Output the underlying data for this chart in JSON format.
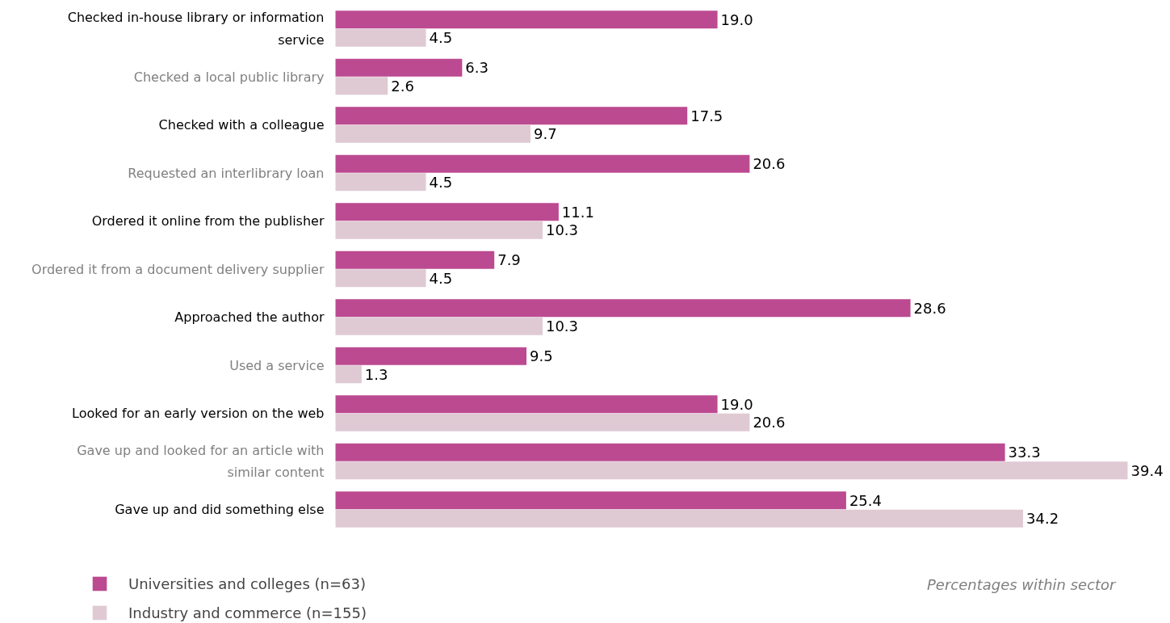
{
  "chart_data": {
    "type": "bar",
    "orientation": "horizontal",
    "grid": false,
    "legend": "bottom left",
    "categories": [
      "Checked in-house library or information service",
      "Checked a local public library",
      "Checked with a colleague",
      "Requested an interlibrary loan",
      "Ordered it online from the publisher",
      "Ordered it from a document delivery supplier",
      "Approached the author",
      "Used a service",
      "Looked for an early version on the web",
      "Gave up and looked for an article with similar content",
      "Gave up and did something else"
    ],
    "series": [
      {
        "name": "Universities and colleges (n=63)",
        "color": "#bc4a91",
        "values": [
          19.0,
          6.3,
          17.5,
          20.6,
          11.1,
          7.9,
          28.6,
          9.5,
          19.0,
          33.3,
          25.4
        ],
        "value_labels": [
          "19.0",
          "6.3",
          "17.5",
          "20.6",
          "11.1",
          "7.9",
          "28.6",
          "9.5",
          "19.0",
          "33.3",
          "25.4"
        ]
      },
      {
        "name": "Industry and commerce (n=155)",
        "color": "#dfcad4",
        "values": [
          4.5,
          2.6,
          9.7,
          4.5,
          10.3,
          4.5,
          10.3,
          1.3,
          20.6,
          39.4,
          34.2
        ],
        "value_labels": [
          "4.5",
          "2.6",
          "9.7",
          "4.5",
          "10.3",
          "4.5",
          "10.3",
          "1.3",
          "20.6",
          "39.4",
          "34.2"
        ]
      }
    ],
    "annotations": [
      "Percentages within sector"
    ]
  }
}
